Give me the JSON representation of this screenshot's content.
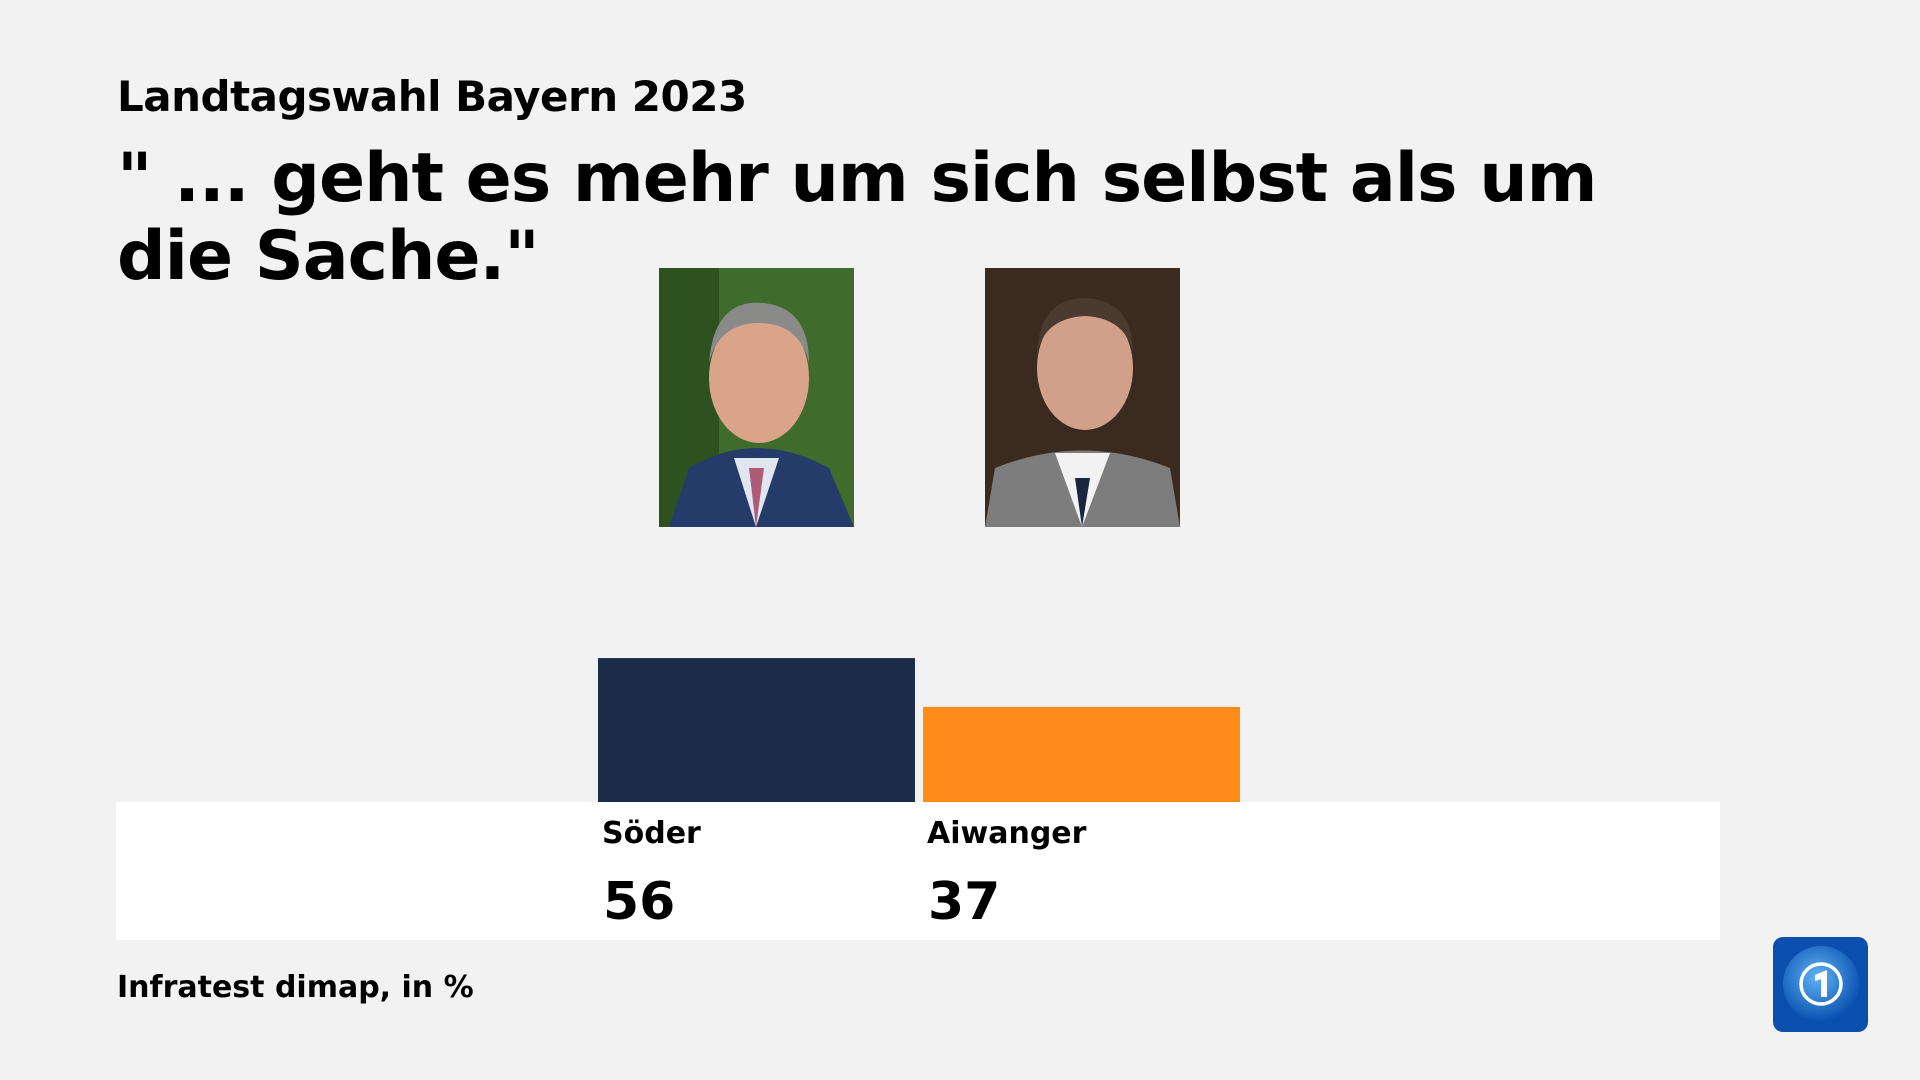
{
  "kicker": "Landtagswahl Bayern 2023",
  "title": "\" ... geht es mehr um sich selbst als um die Sache.\"",
  "source": "Infratest dimap, in %",
  "logo_icon": "tagesschau-logo-icon",
  "chart_data": {
    "type": "bar",
    "categories": [
      "Söder",
      "Aiwanger"
    ],
    "values": [
      56,
      37
    ],
    "colors": [
      "#1a2c4a",
      "#ff8c1a"
    ],
    "unit": "%",
    "ylim": [
      0,
      100
    ],
    "grid": false
  },
  "background": "#f2f2f2"
}
